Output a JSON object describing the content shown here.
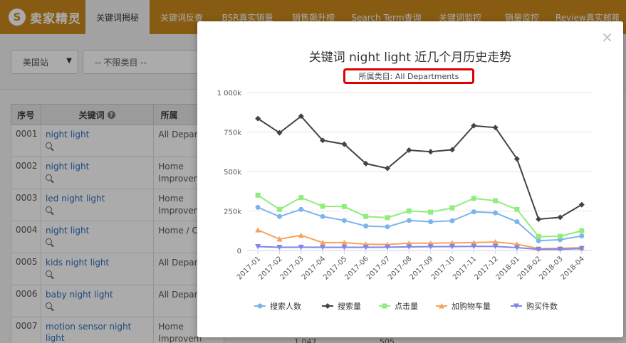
{
  "nav": {
    "logo_glyph": "S",
    "logo_text": "卖家精灵",
    "tabs": [
      {
        "label": "关键词揭秘",
        "active": true
      },
      {
        "label": "关键词反查",
        "active": false
      },
      {
        "label": "BSR真实销量",
        "active": false
      },
      {
        "label": "销售飙升榜",
        "active": false
      },
      {
        "label": "Search Term查询",
        "active": false
      },
      {
        "label": "关键词监控",
        "active": false
      },
      {
        "label": "销量监控",
        "active": false
      },
      {
        "label": "Review真实邮箱",
        "active": false
      }
    ]
  },
  "filters": {
    "site": "美国站",
    "category": "-- 不限类目 --"
  },
  "table": {
    "headers": [
      "序号",
      "关键词",
      "所属"
    ],
    "rows": [
      {
        "no": "0001",
        "keyword": "night light",
        "category": "All Depar"
      },
      {
        "no": "0002",
        "keyword": "night light",
        "category": "Home Improvem"
      },
      {
        "no": "0003",
        "keyword": "led night light",
        "category": "Home Improvem"
      },
      {
        "no": "0004",
        "keyword": "night light",
        "category": "Home / C"
      },
      {
        "no": "0005",
        "keyword": "kids night light",
        "category": "All Depar"
      },
      {
        "no": "0006",
        "keyword": "baby night light",
        "category": "All Depar"
      },
      {
        "no": "0007",
        "keyword": "motion sensor night light",
        "category": "Home Improvem"
      }
    ],
    "partial_values": [
      "1,047",
      "505"
    ]
  },
  "modal": {
    "close_glyph": "×",
    "title": "关键词 night light 近几个月历史走势",
    "subtitle": "所属类目: All Departments"
  },
  "chart_data": {
    "type": "line",
    "title": "关键词 night light 近几个月历史走势",
    "subtitle": "所属类目: All Departments",
    "x": [
      "2017-01",
      "2017-02",
      "2017-03",
      "2017-04",
      "2017-05",
      "2017-06",
      "2017-07",
      "2017-08",
      "2017-09",
      "2017-10",
      "2017-11",
      "2017-12",
      "2018-01",
      "2018-02",
      "2018-03",
      "2018-04"
    ],
    "ylim": [
      0,
      1000000
    ],
    "yticks": [
      0,
      250000,
      500000,
      750000,
      1000000
    ],
    "ytick_labels": [
      "0",
      "250k",
      "500k",
      "750k",
      "1 000k"
    ],
    "grid": true,
    "legend_position": "bottom",
    "series": [
      {
        "name": "搜索人数",
        "color": "#7cb5ec",
        "marker": "circle",
        "values": [
          273000,
          215000,
          260000,
          215000,
          190000,
          155000,
          150000,
          190000,
          182000,
          188000,
          245000,
          238000,
          182000,
          62000,
          68000,
          92000
        ]
      },
      {
        "name": "搜索量",
        "color": "#434348",
        "marker": "diamond",
        "values": [
          835000,
          745000,
          850000,
          697000,
          673000,
          550000,
          520000,
          635000,
          625000,
          638000,
          790000,
          778000,
          580000,
          198000,
          210000,
          290000
        ]
      },
      {
        "name": "点击量",
        "color": "#90ed7d",
        "marker": "square",
        "values": [
          350000,
          260000,
          335000,
          280000,
          278000,
          215000,
          208000,
          250000,
          243000,
          270000,
          330000,
          315000,
          260000,
          88000,
          90000,
          125000
        ]
      },
      {
        "name": "加购物车量",
        "color": "#f7a35c",
        "marker": "triangle",
        "values": [
          130000,
          72000,
          96000,
          50000,
          50000,
          40000,
          38000,
          46000,
          46000,
          48000,
          50000,
          54000,
          40000,
          12000,
          14000,
          18000
        ]
      },
      {
        "name": "购买件数",
        "color": "#8085e9",
        "marker": "triangle-down",
        "values": [
          25000,
          20000,
          21000,
          20000,
          20000,
          20000,
          21000,
          23000,
          24000,
          25000,
          26000,
          26000,
          18000,
          8000,
          8000,
          12000
        ]
      }
    ]
  }
}
